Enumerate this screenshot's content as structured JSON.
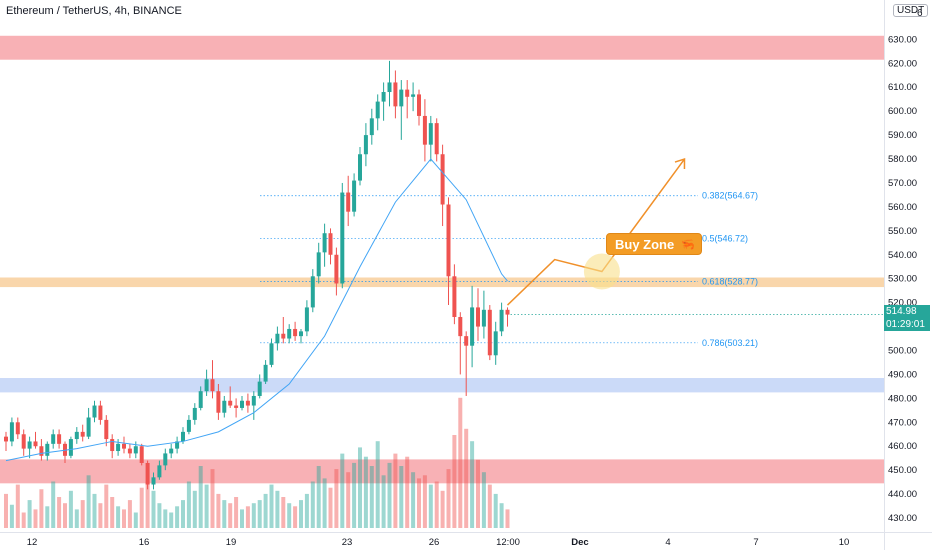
{
  "header": {
    "title": "Ethereum / TetherUS, 4h, BINANCE",
    "quote_currency": "USDT",
    "top_tick_partial": "6"
  },
  "price_axis": {
    "ticks": [
      "630.00",
      "620.00",
      "610.00",
      "600.00",
      "590.00",
      "580.00",
      "570.00",
      "560.00",
      "550.00",
      "540.00",
      "530.00",
      "520.00",
      "500.00",
      "490.00",
      "480.00",
      "470.00",
      "460.00",
      "450.00",
      "440.00",
      "430.00"
    ],
    "last_price": "514.98",
    "countdown": "01:29:01",
    "last_price_color": "#26a69a"
  },
  "time_axis": {
    "labels": [
      "12",
      "16",
      "19",
      "23",
      "26",
      "12:00",
      "Dec",
      "4",
      "7",
      "10"
    ]
  },
  "annotations": {
    "buy_zone_label": "Buy Zone",
    "buy_zone_symbol": "🦐",
    "fib_levels": [
      {
        "label": "0.382(564.67)",
        "price": 564.67
      },
      {
        "label": "0.5(546.72)",
        "price": 546.72
      },
      {
        "label": "0.618(528.77)",
        "price": 528.77
      },
      {
        "label": "0.786(503.21)",
        "price": 503.21
      }
    ]
  },
  "colors": {
    "bull": "#26a69a",
    "bear": "#ef5350",
    "ma_line": "#42a5f5",
    "fib": "#2196f3",
    "arrow": "#f0902a",
    "resistance_zone": "#f7a9ad",
    "support_zone": "#f7a9ad",
    "blue_zone": "#c5d6f7",
    "golden_zone": "#f8cf9c"
  },
  "chart_data": {
    "type": "candlestick",
    "symbol": "Ethereum / TetherUS",
    "interval": "4h",
    "exchange": "BINANCE",
    "ylim": [
      425,
      636
    ],
    "zones": [
      {
        "name": "resistance",
        "low": 621.5,
        "high": 631.5
      },
      {
        "name": "support-blue",
        "low": 482.5,
        "high": 488.5
      },
      {
        "name": "support-red",
        "low": 444.5,
        "high": 454.5
      },
      {
        "name": "golden-pocket",
        "low": 526.5,
        "high": 530.5
      }
    ],
    "candles": [
      [
        464,
        466,
        458,
        462
      ],
      [
        462,
        472,
        460,
        470
      ],
      [
        470,
        472,
        463,
        465
      ],
      [
        465,
        467,
        456,
        459
      ],
      [
        459,
        464,
        455,
        462
      ],
      [
        462,
        466,
        459,
        460
      ],
      [
        460,
        463,
        454,
        456
      ],
      [
        456,
        462,
        454,
        461
      ],
      [
        461,
        467,
        459,
        465
      ],
      [
        465,
        467,
        459,
        461
      ],
      [
        461,
        462,
        453,
        456
      ],
      [
        456,
        464,
        455,
        463
      ],
      [
        463,
        468,
        461,
        466
      ],
      [
        466,
        469,
        462,
        464
      ],
      [
        464,
        476,
        463,
        472
      ],
      [
        472,
        479,
        470,
        477
      ],
      [
        477,
        479,
        469,
        471
      ],
      [
        471,
        473,
        460,
        463
      ],
      [
        463,
        465,
        455,
        458
      ],
      [
        458,
        463,
        456,
        461
      ],
      [
        461,
        464,
        457,
        459
      ],
      [
        459,
        461,
        455,
        457
      ],
      [
        457,
        462,
        455,
        460
      ],
      [
        460,
        461,
        452,
        453
      ],
      [
        453,
        454,
        442,
        444
      ],
      [
        444,
        449,
        442,
        447
      ],
      [
        447,
        454,
        446,
        452
      ],
      [
        452,
        459,
        450,
        457
      ],
      [
        457,
        461,
        455,
        459
      ],
      [
        459,
        464,
        457,
        462
      ],
      [
        462,
        468,
        461,
        466
      ],
      [
        466,
        473,
        465,
        471
      ],
      [
        471,
        478,
        469,
        476
      ],
      [
        476,
        485,
        475,
        483
      ],
      [
        483,
        492,
        481,
        488
      ],
      [
        488,
        496,
        480,
        483
      ],
      [
        483,
        486,
        471,
        474
      ],
      [
        474,
        481,
        472,
        479
      ],
      [
        479,
        485,
        476,
        477
      ],
      [
        477,
        480,
        472,
        476
      ],
      [
        476,
        481,
        475,
        479
      ],
      [
        479,
        482,
        474,
        477
      ],
      [
        477,
        483,
        471,
        481
      ],
      [
        481,
        490,
        480,
        487
      ],
      [
        487,
        496,
        486,
        494
      ],
      [
        494,
        505,
        493,
        503
      ],
      [
        503,
        510,
        500,
        507
      ],
      [
        507,
        514,
        503,
        505
      ],
      [
        505,
        511,
        503,
        509
      ],
      [
        509,
        512,
        504,
        506
      ],
      [
        506,
        509,
        503,
        508
      ],
      [
        508,
        521,
        506,
        518
      ],
      [
        518,
        534,
        516,
        531
      ],
      [
        531,
        545,
        528,
        541
      ],
      [
        541,
        553,
        535,
        549
      ],
      [
        549,
        551,
        536,
        540
      ],
      [
        540,
        543,
        523,
        528
      ],
      [
        528,
        570,
        526,
        566
      ],
      [
        566,
        573,
        552,
        558
      ],
      [
        558,
        574,
        556,
        571
      ],
      [
        571,
        585,
        569,
        582
      ],
      [
        582,
        595,
        577,
        590
      ],
      [
        590,
        601,
        586,
        597
      ],
      [
        597,
        607,
        592,
        604
      ],
      [
        604,
        612,
        596,
        608
      ],
      [
        608,
        621,
        602,
        612
      ],
      [
        612,
        617,
        597,
        602
      ],
      [
        602,
        613,
        588,
        609
      ],
      [
        609,
        613,
        597,
        606
      ],
      [
        606,
        612,
        600,
        607
      ],
      [
        607,
        609,
        594,
        598
      ],
      [
        598,
        605,
        579,
        586
      ],
      [
        586,
        598,
        579,
        595
      ],
      [
        595,
        597,
        579,
        582
      ],
      [
        582,
        586,
        552,
        561
      ],
      [
        561,
        564,
        519,
        531
      ],
      [
        531,
        536,
        511,
        514
      ],
      [
        514,
        516,
        490,
        506
      ],
      [
        506,
        508,
        481,
        502
      ],
      [
        502,
        527,
        493,
        518
      ],
      [
        518,
        526,
        504,
        510
      ],
      [
        510,
        525,
        505,
        517
      ],
      [
        517,
        519,
        496,
        498
      ],
      [
        498,
        512,
        494,
        508
      ],
      [
        508,
        520,
        506,
        517
      ],
      [
        517,
        518,
        510,
        515
      ]
    ],
    "volume": [
      22,
      15,
      28,
      10,
      18,
      12,
      25,
      14,
      30,
      20,
      16,
      24,
      12,
      18,
      34,
      22,
      16,
      28,
      20,
      14,
      12,
      18,
      10,
      26,
      30,
      24,
      16,
      12,
      10,
      14,
      18,
      30,
      24,
      40,
      28,
      38,
      22,
      18,
      16,
      20,
      12,
      14,
      16,
      18,
      22,
      28,
      24,
      20,
      16,
      14,
      18,
      22,
      30,
      40,
      32,
      26,
      38,
      48,
      36,
      42,
      52,
      46,
      40,
      56,
      34,
      42,
      48,
      40,
      46,
      36,
      32,
      34,
      28,
      30,
      24,
      38,
      60,
      84,
      64,
      56,
      44,
      36,
      28,
      22,
      16,
      12
    ],
    "ma_line": [
      [
        0,
        454
      ],
      [
        6,
        457
      ],
      [
        12,
        459
      ],
      [
        18,
        462
      ],
      [
        24,
        460
      ],
      [
        30,
        462
      ],
      [
        36,
        466
      ],
      [
        42,
        474
      ],
      [
        48,
        486
      ],
      [
        54,
        506
      ],
      [
        60,
        535
      ],
      [
        66,
        562
      ],
      [
        72,
        580
      ],
      [
        78,
        563
      ],
      [
        84,
        532
      ],
      [
        85,
        529
      ]
    ],
    "projection": [
      [
        85,
        519
      ],
      [
        93,
        538
      ],
      [
        101,
        533
      ],
      [
        115,
        580
      ]
    ]
  }
}
